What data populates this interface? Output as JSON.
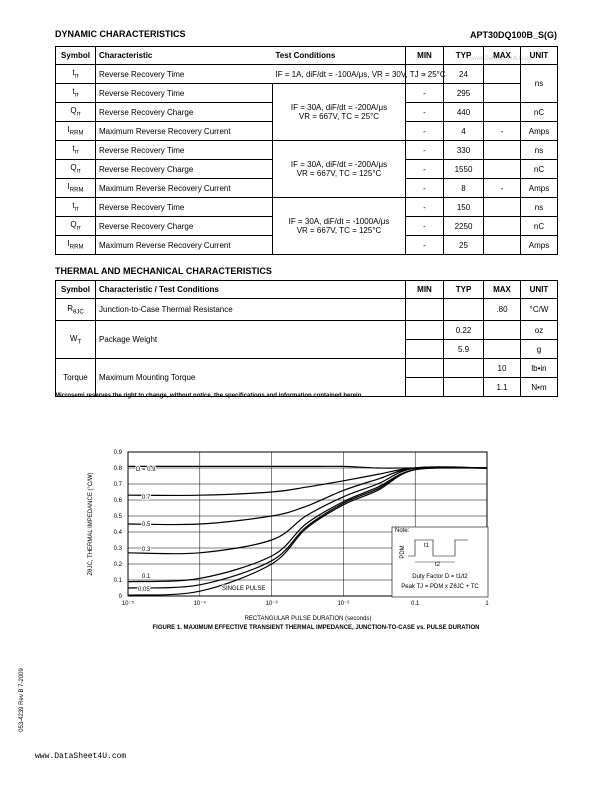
{
  "header": {
    "section_title": "DYNAMIC CHARACTERISTICS",
    "part_number": "APT30DQ100B_S(G)",
    "watermark": "www.DataSheet4U.com"
  },
  "dynamic_table": {
    "headers": [
      "Symbol",
      "Characteristic",
      "Test Conditions",
      "MIN",
      "TYP",
      "MAX",
      "UNIT"
    ],
    "rows": [
      {
        "symbol": "t",
        "symbol_sub": "rr",
        "characteristic": "Reverse Recovery Time",
        "conditions": "IF = 1A,  diF/dt = -100A/μs, VR = 30V,  TJ = 25°C",
        "min": "-",
        "typ": "24",
        "unit": "ns"
      },
      {
        "symbol": "t",
        "symbol_sub": "rr",
        "characteristic": "Reverse Recovery Time",
        "min": "-",
        "typ": "295"
      },
      {
        "symbol": "Q",
        "symbol_sub": "rr",
        "characteristic": "Reverse Recovery Charge",
        "min": "-",
        "typ": "440",
        "unit": "nC"
      },
      {
        "symbol": "I",
        "symbol_sub": "RRM",
        "characteristic": "Maximum Reverse Recovery Current",
        "min": "-",
        "typ": "4",
        "max": "-",
        "unit": "Amps"
      },
      {
        "symbol": "t",
        "symbol_sub": "rr",
        "characteristic": "Reverse Recovery Time",
        "min": "-",
        "typ": "330",
        "unit": "ns"
      },
      {
        "symbol": "Q",
        "symbol_sub": "rr",
        "characteristic": "Reverse Recovery Charge",
        "min": "-",
        "typ": "1550",
        "unit": "nC"
      },
      {
        "symbol": "I",
        "symbol_sub": "RRM",
        "characteristic": "Maximum Reverse Recovery Current",
        "min": "-",
        "typ": "8",
        "max": "-",
        "unit": "Amps"
      },
      {
        "symbol": "t",
        "symbol_sub": "rr",
        "characteristic": "Reverse Recovery Time",
        "min": "-",
        "typ": "150",
        "unit": "ns"
      },
      {
        "symbol": "Q",
        "symbol_sub": "rr",
        "characteristic": "Reverse Recovery Charge",
        "min": "-",
        "typ": "2250",
        "unit": "nC"
      },
      {
        "symbol": "I",
        "symbol_sub": "RRM",
        "characteristic": "Maximum Reverse Recovery Current",
        "min": "-",
        "typ": "25",
        "unit": "Amps"
      }
    ],
    "condition_groups": [
      {
        "lines": [
          "IF = 30A,  diF/dt = -200A/μs",
          "VR = 667V,  TC = 25°C"
        ]
      },
      {
        "lines": [
          "IF = 30A,  diF/dt = -200A/μs",
          "VR = 667V,  TC = 125°C"
        ]
      },
      {
        "lines": [
          "IF = 30A,  diF/dt = -1000A/μs",
          "VR = 667V,  TC = 125°C"
        ]
      }
    ]
  },
  "thermal_section_title": "THERMAL AND MECHANICAL CHARACTERISTICS",
  "thermal_table": {
    "headers": [
      "Symbol",
      "Characteristic / Test Conditions",
      "MIN",
      "TYP",
      "MAX",
      "UNIT"
    ],
    "rows": [
      {
        "symbol": "R",
        "symbol_sub": "θJC",
        "characteristic": "Junction-to-Case Thermal Resistance",
        "max": ".80",
        "unit": "°C/W"
      },
      {
        "symbol": "W",
        "symbol_sub": "T",
        "characteristic": "Package Weight",
        "typ": "0.22",
        "unit": "oz"
      },
      {
        "typ": "5.9",
        "unit": "g"
      },
      {
        "symbol": "Torque",
        "characteristic": "Maximum Mounting Torque",
        "max": "10",
        "unit": "lb•in"
      },
      {
        "max": "1.1",
        "unit": "N•m"
      }
    ]
  },
  "disclaimer": "Microsemi reserves the right to change, without notice, the specifications and information contained herein.",
  "chart_data": {
    "type": "line",
    "title": "FIGURE 1. MAXIMUM EFFECTIVE TRANSIENT THERMAL IMPEDANCE, JUNCTION-TO-CASE vs. PULSE DURATION",
    "x_label": "RECTANGULAR PULSE DURATION (seconds)",
    "y_label": "ZθJC, THERMAL IMPEDANCE (°C/W)",
    "log_x": true,
    "grid": true,
    "xlim": [
      1e-05,
      1
    ],
    "xticks": [
      {
        "value": 1e-05,
        "label": "10⁻⁵"
      },
      {
        "value": 0.0001,
        "label": "10⁻⁴"
      },
      {
        "value": 0.001,
        "label": "10⁻³"
      },
      {
        "value": 0.01,
        "label": "10⁻²"
      },
      0.1,
      1
    ],
    "ylim": [
      0,
      0.9
    ],
    "yticks": [
      0,
      0.1,
      0.2,
      0.3,
      0.4,
      0.5,
      0.6,
      0.7,
      0.8,
      0.9
    ],
    "x": [
      1e-05,
      0.0001,
      0.001,
      0.003,
      0.01,
      0.03,
      0.1,
      1
    ],
    "series": [
      {
        "name": "D = 0.9",
        "color": "#000000",
        "values": [
          0.81,
          0.81,
          0.81,
          0.81,
          0.81,
          0.8,
          0.8,
          0.8
        ]
      },
      {
        "name": "0.7",
        "color": "#000000",
        "values": [
          0.63,
          0.63,
          0.65,
          0.68,
          0.72,
          0.76,
          0.8,
          0.8
        ]
      },
      {
        "name": "0.5",
        "color": "#000000",
        "values": [
          0.45,
          0.45,
          0.5,
          0.56,
          0.66,
          0.73,
          0.8,
          0.8
        ]
      },
      {
        "name": "0.3",
        "color": "#000000",
        "values": [
          0.27,
          0.27,
          0.35,
          0.5,
          0.62,
          0.7,
          0.8,
          0.8
        ]
      },
      {
        "name": "0.1",
        "color": "#000000",
        "values": [
          0.09,
          0.11,
          0.25,
          0.45,
          0.59,
          0.68,
          0.79,
          0.8
        ]
      },
      {
        "name": "0.05",
        "color": "#000000",
        "values": [
          0.05,
          0.07,
          0.22,
          0.43,
          0.58,
          0.67,
          0.79,
          0.8
        ]
      },
      {
        "name": "SINGLE PULSE",
        "color": "#000000",
        "values": [
          0.005,
          0.03,
          0.2,
          0.42,
          0.57,
          0.66,
          0.79,
          0.8
        ]
      }
    ],
    "note": {
      "title": "Note:",
      "pdm": "PDM",
      "t1": "t1",
      "t2": "t2",
      "duty": "Duty Factor D = t1/t2",
      "peak": "Peak TJ = PDM x ZθJC + TC"
    }
  },
  "side_code": "053-4239   Rev   B   7-2009",
  "footer_url": "www.DataSheet4U.com"
}
